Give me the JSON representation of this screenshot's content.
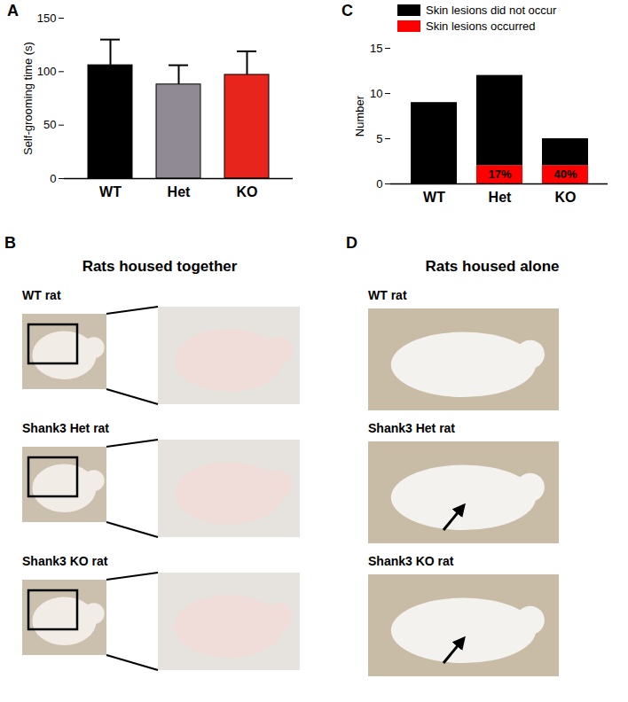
{
  "chart_data": [
    {
      "panel": "A",
      "type": "bar",
      "categories": [
        "WT",
        "Het",
        "KO"
      ],
      "values": [
        106,
        88,
        97
      ],
      "errors": [
        24,
        18,
        22
      ],
      "colors": [
        "#000000",
        "#8f8a93",
        "#e8251d"
      ],
      "y_label": "Self-grooming time (s)",
      "ylim": [
        0,
        150
      ],
      "yticks": [
        0,
        50,
        100,
        150
      ]
    },
    {
      "panel": "C",
      "type": "bar",
      "stacked": true,
      "categories": [
        "WT",
        "Het",
        "KO"
      ],
      "series": [
        {
          "name": "Skin lesions did not occur",
          "color": "#000000",
          "values": [
            9,
            10,
            3
          ]
        },
        {
          "name": "Skin lesions occurred",
          "color": "#ff0000",
          "values": [
            0,
            2,
            2
          ]
        }
      ],
      "annotations": [
        {
          "category": "Het",
          "series": "Skin lesions occurred",
          "label": "17%"
        },
        {
          "category": "KO",
          "series": "Skin lesions occurred",
          "label": "40%"
        }
      ],
      "y_label": "Number",
      "ylim": [
        0,
        15
      ],
      "yticks": [
        0,
        5,
        10,
        15
      ],
      "legend": "top-left"
    }
  ],
  "photo_panels": [
    {
      "panel": "B",
      "title": "Rats housed together",
      "zoom": true,
      "rows": [
        {
          "label": "WT rat",
          "arrow": false
        },
        {
          "label": "Shank3 Het rat",
          "arrow": false
        },
        {
          "label": "Shank3 KO rat",
          "arrow": false
        }
      ]
    },
    {
      "panel": "D",
      "title": "Rats housed alone",
      "zoom": false,
      "rows": [
        {
          "label": "WT rat",
          "arrow": false
        },
        {
          "label": "Shank3 Het rat",
          "arrow": true
        },
        {
          "label": "Shank3 KO rat",
          "arrow": true
        }
      ]
    }
  ]
}
